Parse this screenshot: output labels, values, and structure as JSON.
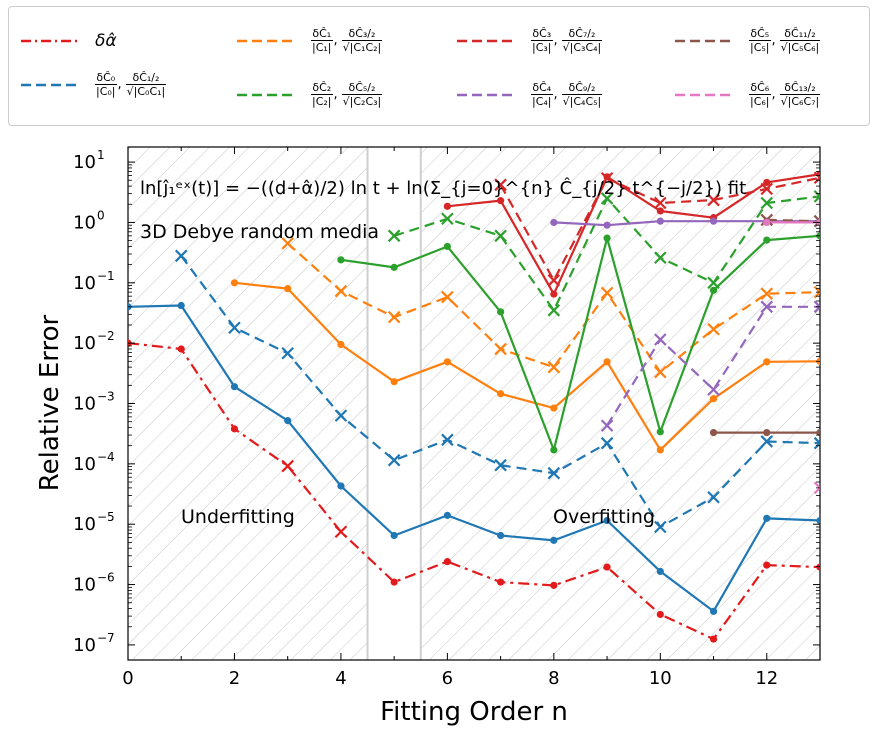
{
  "chart_data": {
    "type": "line",
    "title": "",
    "xlabel": "Fitting Order n",
    "ylabel": "Relative Error",
    "xlim": [
      0,
      13
    ],
    "ylim_log10": [
      -7.25,
      1.25
    ],
    "yscale": "log",
    "x_ticks": [
      "0",
      "2",
      "4",
      "6",
      "8",
      "10",
      "12"
    ],
    "y_ticks": [
      "10^-7",
      "10^-6",
      "10^-5",
      "10^-4",
      "10^-3",
      "10^-2",
      "10^-1",
      "10^0",
      "10^1"
    ],
    "annotations": {
      "formula": "ln[ĵ₁ᵉˣ(t)] = −((d+α̂)/2) ln t + ln(Σ_{j=0}^{n} Ĉ_{j/2} t^{−j/2}) fit",
      "medium": "3D Debye random media",
      "underfitting": "Underfitting",
      "overfitting": "Overfitting"
    },
    "region_boundaries_x": [
      4.5,
      5.5
    ],
    "series": [
      {
        "name": "δα̂",
        "color": "#e31a1c",
        "style": "dashdot",
        "marker": "mixed",
        "points": [
          [
            0,
            0.01
          ],
          [
            1,
            0.008
          ],
          [
            2,
            0.00038
          ],
          [
            3,
            9.2e-05
          ],
          [
            4,
            7.5e-06
          ],
          [
            5,
            1.1e-06
          ],
          [
            6,
            2.4e-06
          ],
          [
            7,
            1.1e-06
          ],
          [
            8,
            9.7e-07
          ],
          [
            9,
            1.95e-06
          ],
          [
            10,
            3.2e-07
          ],
          [
            11,
            1.25e-07
          ],
          [
            12,
            2.1e-06
          ],
          [
            13,
            1.95e-06
          ]
        ]
      },
      {
        "name": "δĈ0/|C0|",
        "color": "#1f77b4",
        "style": "solid",
        "marker": "dot",
        "points": [
          [
            0,
            0.04
          ],
          [
            1,
            0.042
          ],
          [
            2,
            0.0019
          ],
          [
            3,
            0.00052
          ],
          [
            4,
            4.3e-05
          ],
          [
            5,
            6.5e-06
          ],
          [
            6,
            1.4e-05
          ],
          [
            7,
            6.5e-06
          ],
          [
            8,
            5.4e-06
          ],
          [
            9,
            1.15e-05
          ],
          [
            10,
            1.65e-06
          ],
          [
            11,
            3.6e-07
          ],
          [
            12,
            1.25e-05
          ],
          [
            13,
            1.15e-05
          ]
        ]
      },
      {
        "name": "δĈ1/2/√|C0C1|",
        "color": "#1f77b4",
        "style": "dashed",
        "marker": "x",
        "points": [
          [
            1,
            0.28
          ],
          [
            2,
            0.018
          ],
          [
            3,
            0.0068
          ],
          [
            4,
            0.00063
          ],
          [
            5,
            0.000115
          ],
          [
            6,
            0.00025
          ],
          [
            7,
            9.5e-05
          ],
          [
            8,
            7e-05
          ],
          [
            9,
            0.00022
          ],
          [
            10,
            9e-06
          ],
          [
            11,
            2.8e-05
          ],
          [
            12,
            0.000235
          ],
          [
            13,
            0.00022
          ]
        ]
      },
      {
        "name": "δĈ1/|C1|",
        "color": "#ff7f0e",
        "style": "solid",
        "marker": "dot",
        "points": [
          [
            2,
            0.1
          ],
          [
            3,
            0.08
          ],
          [
            4,
            0.0095
          ],
          [
            5,
            0.0023
          ],
          [
            6,
            0.0049
          ],
          [
            7,
            0.00145
          ],
          [
            8,
            0.00084
          ],
          [
            9,
            0.0049
          ],
          [
            10,
            0.00017
          ],
          [
            11,
            0.0012
          ],
          [
            12,
            0.0049
          ],
          [
            13,
            0.005
          ]
        ]
      },
      {
        "name": "δĈ3/2/√|C1C2|",
        "color": "#ff7f0e",
        "style": "dashed",
        "marker": "x",
        "points": [
          [
            3,
            0.45
          ],
          [
            4,
            0.073
          ],
          [
            5,
            0.027
          ],
          [
            6,
            0.058
          ],
          [
            7,
            0.008
          ],
          [
            8,
            0.004
          ],
          [
            9,
            0.068
          ],
          [
            10,
            0.0033
          ],
          [
            11,
            0.017
          ],
          [
            12,
            0.066
          ],
          [
            13,
            0.07
          ]
        ]
      },
      {
        "name": "δĈ2/|C2|",
        "color": "#2ca02c",
        "style": "solid",
        "marker": "dot",
        "points": [
          [
            4,
            0.24
          ],
          [
            5,
            0.18
          ],
          [
            6,
            0.4
          ],
          [
            7,
            0.033
          ],
          [
            8,
            0.00017
          ],
          [
            9,
            0.55
          ],
          [
            10,
            0.00034
          ],
          [
            11,
            0.075
          ],
          [
            12,
            0.51
          ],
          [
            13,
            0.6
          ]
        ]
      },
      {
        "name": "δĈ5/2/√|C2C3|",
        "color": "#2ca02c",
        "style": "dashed",
        "marker": "x",
        "points": [
          [
            5,
            0.6
          ],
          [
            6,
            1.15
          ],
          [
            7,
            0.6
          ],
          [
            8,
            0.035
          ],
          [
            9,
            2.5
          ],
          [
            10,
            0.26
          ],
          [
            11,
            0.1
          ],
          [
            12,
            2.1
          ],
          [
            13,
            2.7
          ]
        ]
      },
      {
        "name": "δĈ3/|C3|",
        "color": "#d62728",
        "style": "solid",
        "marker": "dot",
        "points": [
          [
            6,
            1.85
          ],
          [
            7,
            2.3
          ],
          [
            8,
            0.065
          ],
          [
            9,
            5.7
          ],
          [
            10,
            1.55
          ],
          [
            11,
            1.2
          ],
          [
            12,
            4.6
          ],
          [
            13,
            6.3
          ]
        ]
      },
      {
        "name": "δĈ7/2/√|C3C4|",
        "color": "#d62728",
        "style": "dashed",
        "marker": "x",
        "points": [
          [
            7,
            4.2
          ],
          [
            8,
            0.11
          ],
          [
            9,
            5.4
          ],
          [
            10,
            2.1
          ],
          [
            11,
            2.35
          ],
          [
            12,
            3.6
          ],
          [
            13,
            5.5
          ]
        ]
      },
      {
        "name": "δĈ4/|C4|",
        "color": "#9467bd",
        "style": "solid",
        "marker": "dot",
        "points": [
          [
            8,
            1.0
          ],
          [
            9,
            0.9
          ],
          [
            10,
            1.05
          ],
          [
            11,
            1.05
          ],
          [
            12,
            1.05
          ],
          [
            13,
            1.05
          ]
        ]
      },
      {
        "name": "δĈ9/2/√|C4C5|",
        "color": "#9467bd",
        "style": "dashed",
        "marker": "x",
        "points": [
          [
            9,
            0.00043
          ],
          [
            10,
            0.0115
          ],
          [
            11,
            0.0017
          ],
          [
            12,
            0.04
          ],
          [
            13,
            0.04
          ]
        ]
      },
      {
        "name": "δĈ5/|C5|",
        "color": "#8c564b",
        "style": "solid",
        "marker": "dot",
        "points": [
          [
            11,
            0.00033
          ],
          [
            12,
            0.00033
          ],
          [
            13,
            0.00033
          ]
        ]
      },
      {
        "name": "δĈ11/2/√|C5C6|",
        "color": "#8c564b",
        "style": "dashed",
        "marker": "x",
        "points": [
          [
            12,
            1.1
          ],
          [
            13,
            1.05
          ]
        ]
      },
      {
        "name": "δĈ6/|C6|",
        "color": "#e377c2",
        "style": "solid",
        "marker": "dot",
        "points": [
          [
            12,
            1.0
          ],
          [
            13,
            1.0
          ]
        ]
      },
      {
        "name": "δĈ13/2/√|C6C7|",
        "color": "#e377c2",
        "style": "dashed",
        "marker": "x",
        "points": [
          [
            13,
            4e-05
          ]
        ]
      }
    ]
  },
  "legend": [
    {
      "id": "alpha",
      "color": "#e31a1c",
      "dash": "10,4,2,4",
      "label": "δα̂"
    },
    {
      "id": "c0",
      "color": "#1f77b4",
      "dash": "10,5",
      "n1": "δĈ₀",
      "d1": "|C₀|",
      "n2": "δĈ₁/₂",
      "d2": "√|C₀C₁|"
    },
    {
      "id": "c1",
      "color": "#ff7f0e",
      "dash": "10,5",
      "n1": "δĈ₁",
      "d1": "|C₁|",
      "n2": "δĈ₃/₂",
      "d2": "√|C₁C₂|"
    },
    {
      "id": "c2",
      "color": "#2ca02c",
      "dash": "10,5",
      "n1": "δĈ₂",
      "d1": "|C₂|",
      "n2": "δĈ₅/₂",
      "d2": "√|C₂C₃|"
    },
    {
      "id": "c3",
      "color": "#d62728",
      "dash": "10,5",
      "n1": "δĈ₃",
      "d1": "|C₃|",
      "n2": "δĈ₇/₂",
      "d2": "√|C₃C₄|"
    },
    {
      "id": "c4",
      "color": "#9467bd",
      "dash": "10,5",
      "n1": "δĈ₄",
      "d1": "|C₄|",
      "n2": "δĈ₉/₂",
      "d2": "√|C₄C₅|"
    },
    {
      "id": "c5",
      "color": "#8c564b",
      "dash": "10,5",
      "n1": "δĈ₅",
      "d1": "|C₅|",
      "n2": "δĈ₁₁/₂",
      "d2": "√|C₅C₆|"
    },
    {
      "id": "c6",
      "color": "#e377c2",
      "dash": "10,5",
      "n1": "δĈ₆",
      "d1": "|C₆|",
      "n2": "δĈ₁₃/₂",
      "d2": "√|C₆C₇|"
    }
  ]
}
